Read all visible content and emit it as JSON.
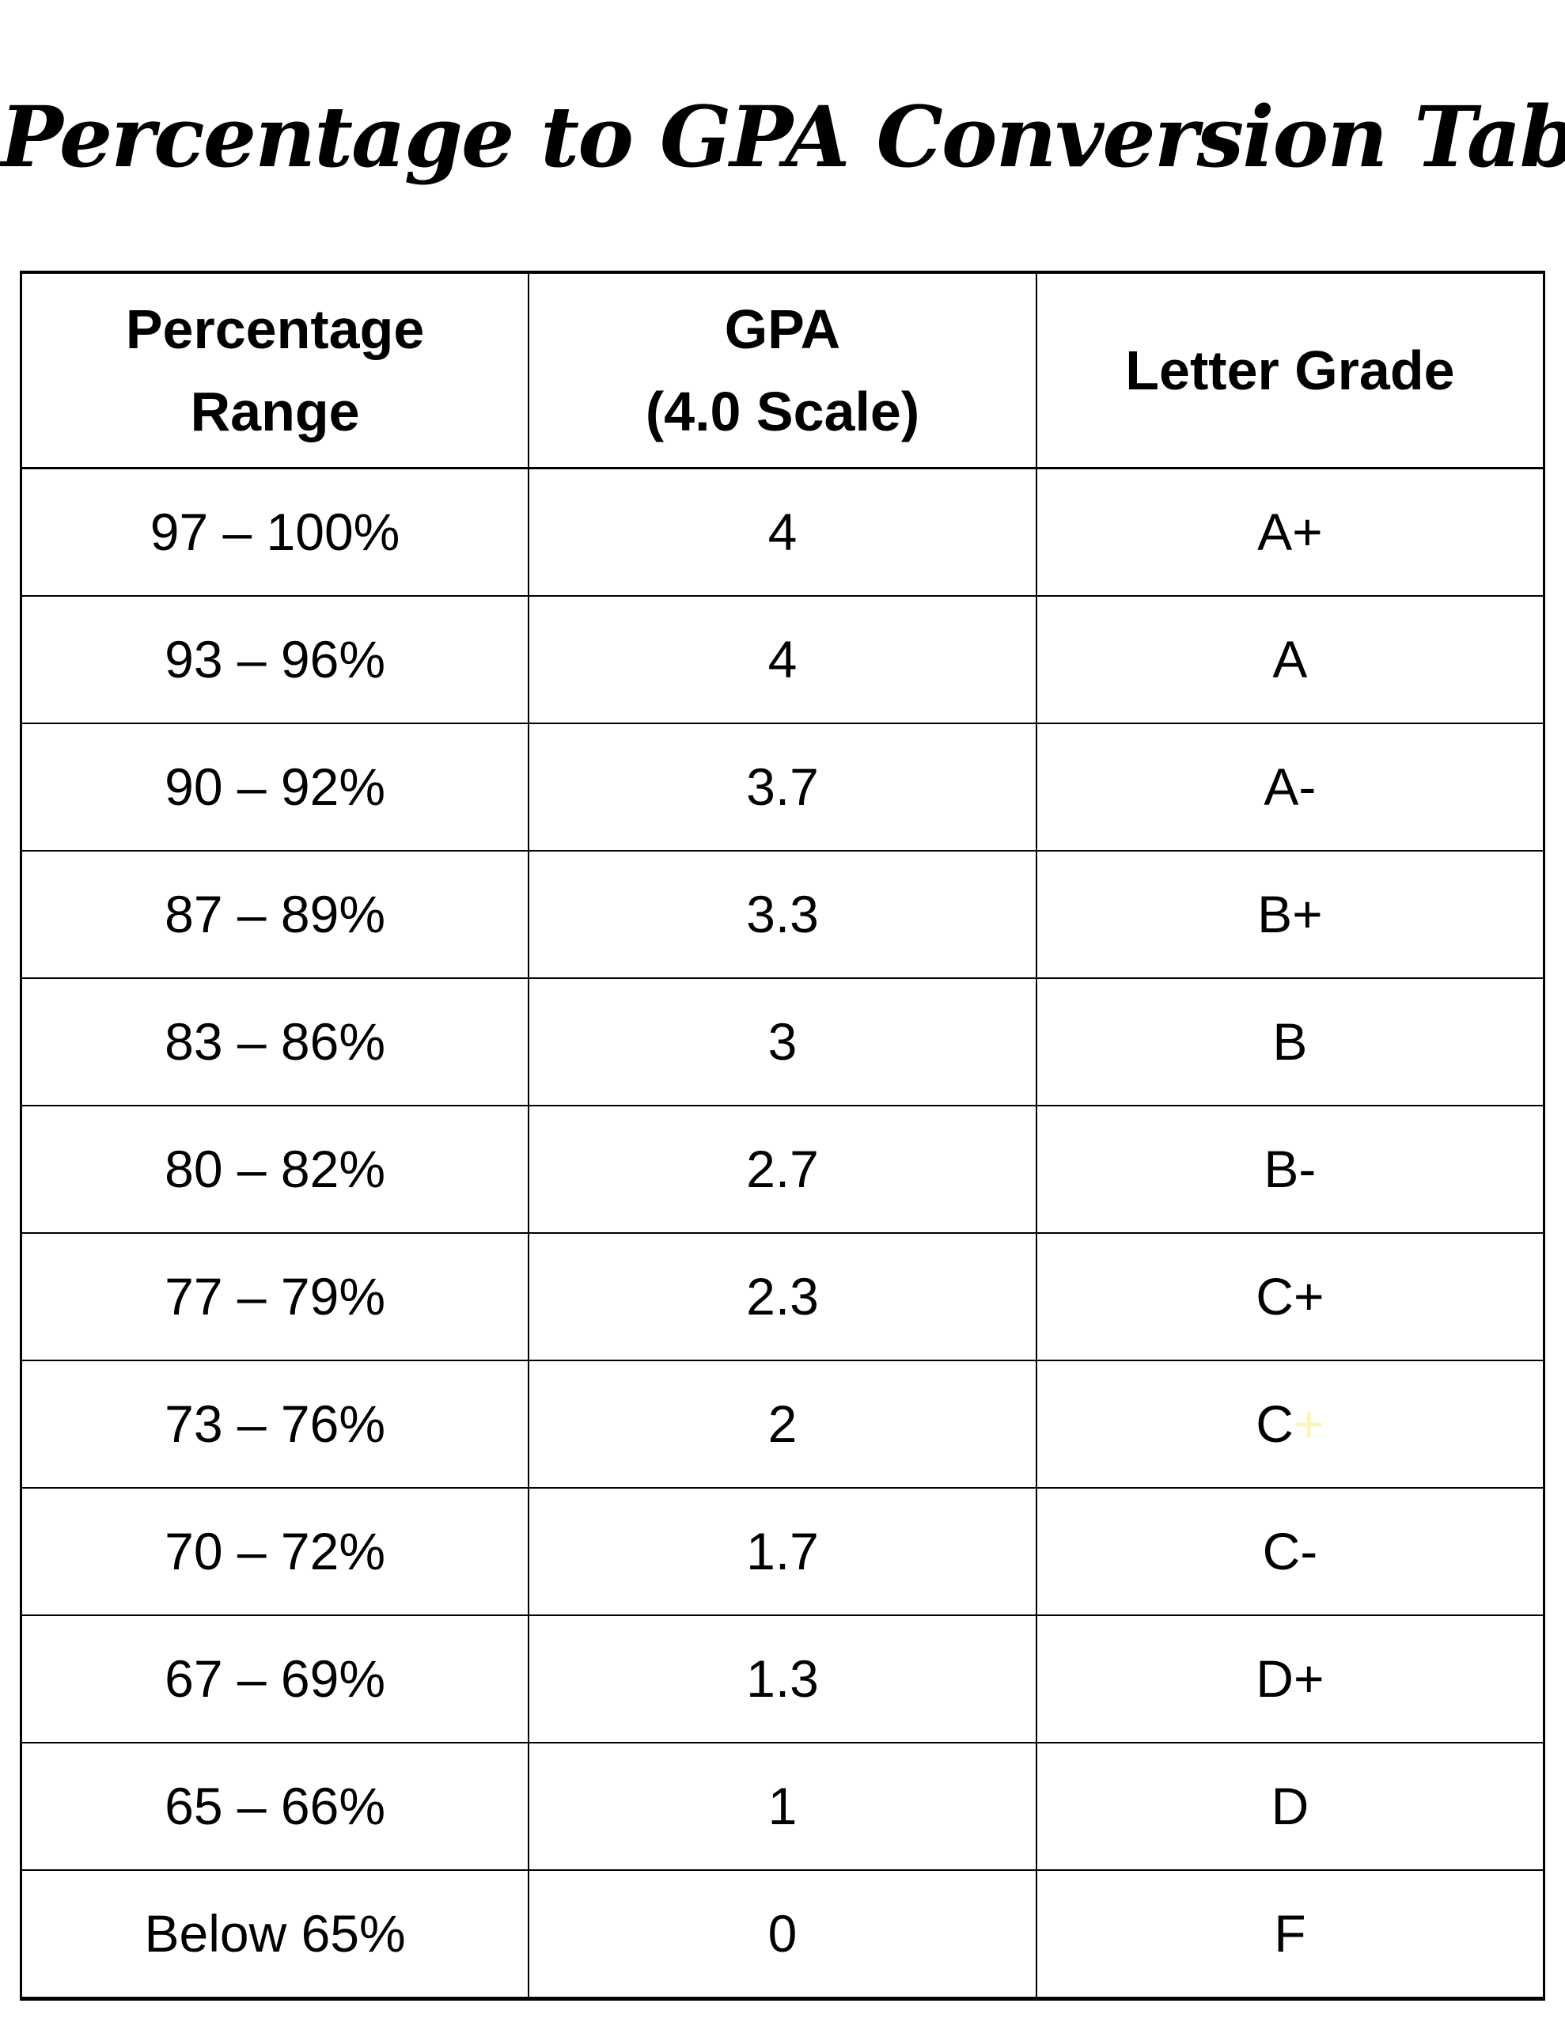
{
  "title": "Percentage to GPA Conversion Table",
  "colors": {
    "text": "#000000",
    "border": "#000000",
    "background": "#ffffff",
    "letter_suffix_highlight": "#fbf7b0"
  },
  "table": {
    "headers": [
      {
        "lines": [
          "Percentage",
          "Range"
        ]
      },
      {
        "lines": [
          "GPA",
          "(4.0 Scale)"
        ]
      },
      {
        "lines": [
          "Letter Grade"
        ]
      }
    ],
    "rows": [
      {
        "range": "97 – 100%",
        "gpa": "4",
        "letter": "A+"
      },
      {
        "range": "93 – 96%",
        "gpa": "4",
        "letter": "A"
      },
      {
        "range": "90 – 92%",
        "gpa": "3.7",
        "letter": "A-"
      },
      {
        "range": "87 – 89%",
        "gpa": "3.3",
        "letter": "B+"
      },
      {
        "range": "83 – 86%",
        "gpa": "3",
        "letter": "B"
      },
      {
        "range": "80 – 82%",
        "gpa": "2.7",
        "letter": "B-"
      },
      {
        "range": "77 – 79%",
        "gpa": "2.3",
        "letter": "C+"
      },
      {
        "range": "73 – 76%",
        "gpa": "2",
        "letter": "C",
        "letter_suffix": "+",
        "letter_suffix_color": "#fbf7b0"
      },
      {
        "range": "70 – 72%",
        "gpa": "1.7",
        "letter": "C-"
      },
      {
        "range": "67 – 69%",
        "gpa": "1.3",
        "letter": "D+"
      },
      {
        "range": "65 – 66%",
        "gpa": "1",
        "letter": "D"
      },
      {
        "range": "Below 65%",
        "gpa": "0",
        "letter": "F"
      }
    ]
  }
}
